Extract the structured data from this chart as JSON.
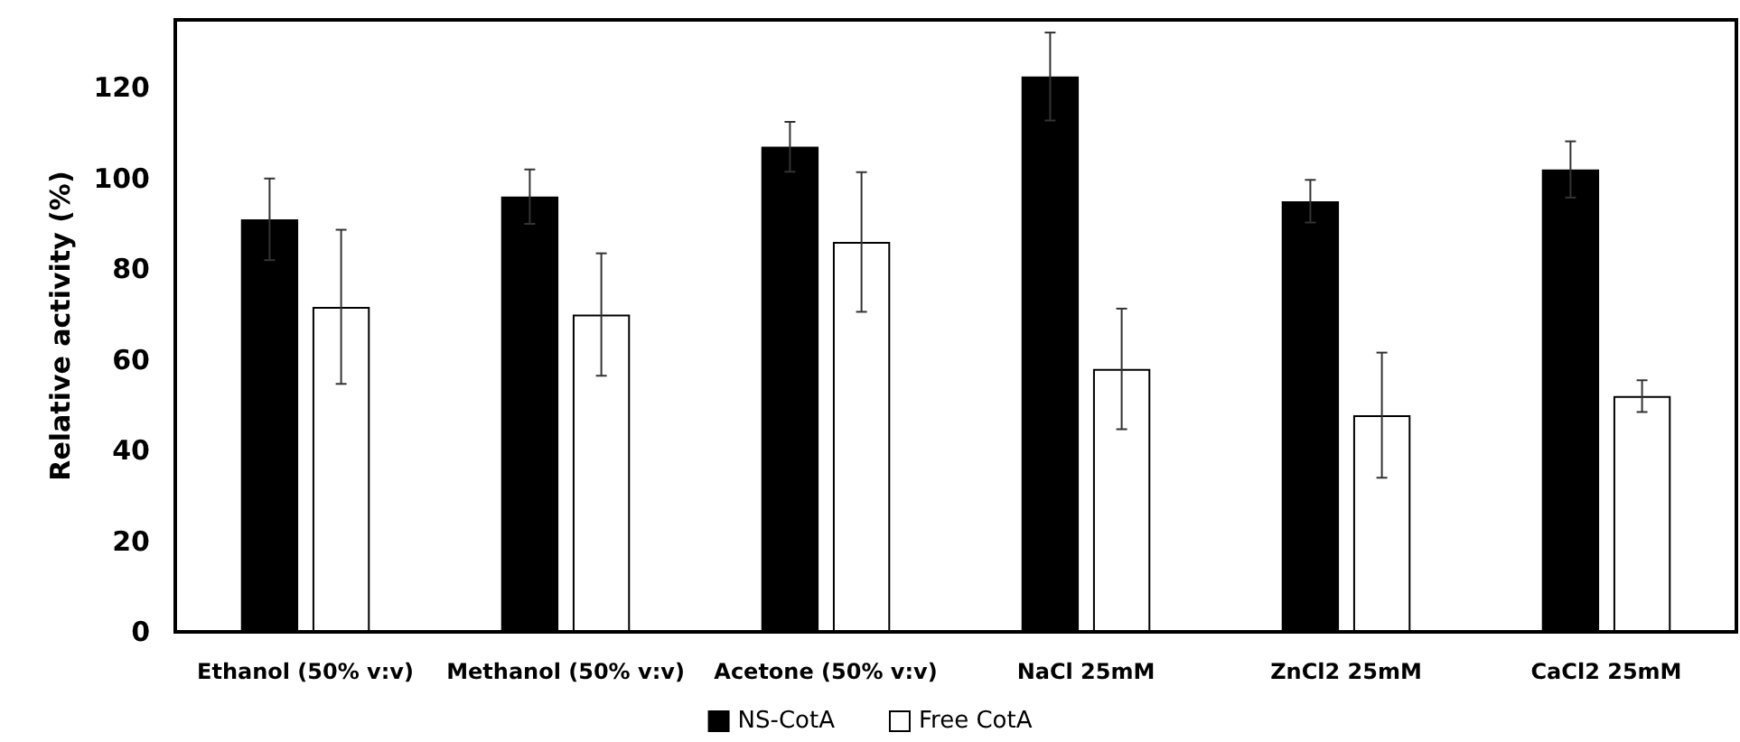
{
  "chart_data": {
    "type": "bar",
    "ylabel": "Relative activity (%)",
    "categories": [
      "Ethanol (50% v:v)",
      "Methanol (50% v:v)",
      "Acetone (50% v:v)",
      "NaCl 25mM",
      "ZnCl2 25mM",
      "CaCl2 25mM"
    ],
    "series": [
      {
        "name": "NS-CotA",
        "color": "#000000",
        "values": [
          91,
          96,
          107,
          122.5,
          95,
          102
        ],
        "errors": [
          9,
          6,
          5.5,
          9.7,
          4.7,
          6.2
        ]
      },
      {
        "name": "Free CotA",
        "color": "#ffffff",
        "values": [
          71.7,
          70,
          86,
          58,
          47.8,
          52
        ],
        "errors": [
          17,
          13.5,
          15.4,
          13.3,
          13.8,
          3.5
        ]
      }
    ],
    "ylim": [
      0,
      135
    ],
    "yticks": [
      0,
      20,
      40,
      60,
      80,
      100,
      120
    ],
    "grid": false,
    "legend": "bottom"
  }
}
